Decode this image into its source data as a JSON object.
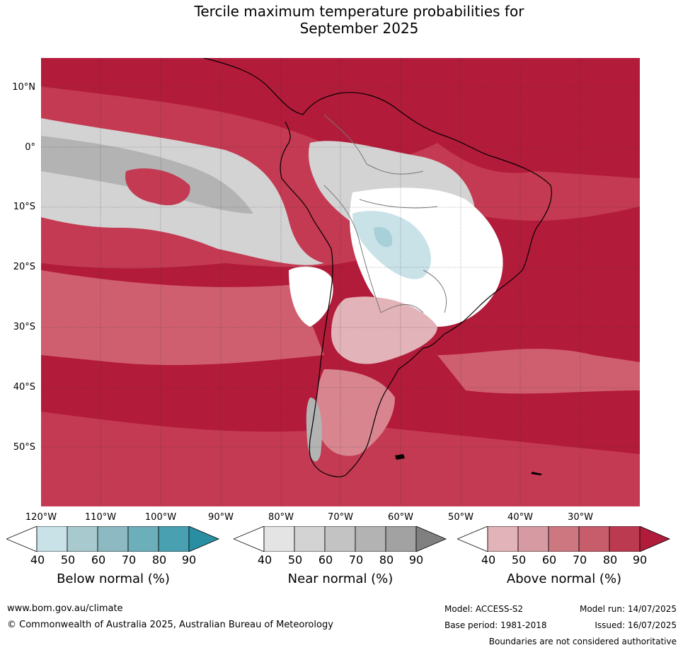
{
  "title": {
    "line1": "Tercile maximum temperature probabilities for",
    "line2": "September 2025"
  },
  "map": {
    "lat_labels": [
      "10°N",
      "0°",
      "10°S",
      "20°S",
      "30°S",
      "40°S",
      "50°S"
    ],
    "lon_labels": [
      "120°W",
      "110°W",
      "100°W",
      "90°W",
      "80°W",
      "70°W",
      "60°W",
      "50°W",
      "40°W",
      "30°W"
    ],
    "colors": {
      "above_90": "#b31b3a",
      "above_80": "#c43a52",
      "above_70": "#cf5f6f",
      "above_60": "#d88590",
      "above_50": "#e2b3b8",
      "near_50": "#e4e4e4",
      "near_60": "#d3d3d3",
      "near_70": "#c3c3c3",
      "near_80": "#b3b3b3",
      "near_90": "#a2a2a2",
      "below_50": "#c9e2e8",
      "below_60": "#a8d0d8",
      "below_70": "#8bbfc8",
      "below_80": "#6aacb8",
      "below_90": "#48a0b0"
    }
  },
  "legends": [
    {
      "label": "Below normal (%)",
      "ticks": [
        "40",
        "50",
        "60",
        "70",
        "80",
        "90"
      ],
      "colors": [
        "#ffffff",
        "#c9e2e8",
        "#a8c9ce",
        "#8cb9c2",
        "#6daebb",
        "#48a0b0",
        "#2a8ea3"
      ]
    },
    {
      "label": "Near normal (%)",
      "ticks": [
        "40",
        "50",
        "60",
        "70",
        "80",
        "90"
      ],
      "colors": [
        "#ffffff",
        "#e4e4e4",
        "#d3d3d3",
        "#c3c3c3",
        "#b3b3b3",
        "#a2a2a2",
        "#808080"
      ]
    },
    {
      "label": "Above normal (%)",
      "ticks": [
        "40",
        "50",
        "60",
        "70",
        "80",
        "90"
      ],
      "colors": [
        "#ffffff",
        "#e2b3b8",
        "#d69ba2",
        "#cd7780",
        "#c75c6b",
        "#bb3a50",
        "#b01c3a"
      ]
    }
  ],
  "footer": {
    "website": "www.bom.gov.au/climate",
    "copyright": "© Commonwealth of Australia 2025, Australian Bureau of Meteorology",
    "model": "Model: ACCESS-S2",
    "model_run": "Model run: 14/07/2025",
    "base_period": "Base period: 1981-2018",
    "issued": "Issued: 16/07/2025",
    "disclaimer": "Boundaries are not considered authoritative"
  }
}
